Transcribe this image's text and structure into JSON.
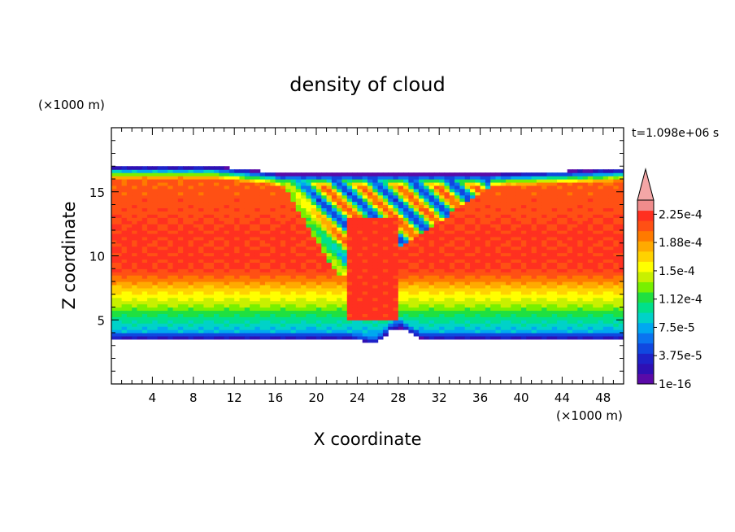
{
  "chart_data": {
    "type": "heatmap",
    "title": "density of cloud",
    "xlabel": "X coordinate",
    "ylabel": "Z coordinate",
    "x_unit": "(×1000 m)",
    "y_unit": "(×1000 m)",
    "time_label": "t=1.098e+06 s",
    "xlim": [
      0,
      50
    ],
    "ylim": [
      0,
      20
    ],
    "x_ticks": [
      4,
      8,
      12,
      16,
      20,
      24,
      28,
      32,
      36,
      40,
      44,
      48
    ],
    "x_tick_labels": [
      "4",
      "8",
      "12",
      "16",
      "20",
      "24",
      "28",
      "32",
      "36",
      "40",
      "44",
      "48"
    ],
    "y_ticks": [
      5,
      10,
      15
    ],
    "y_tick_labels": [
      "5",
      "10",
      "15"
    ],
    "grid": false,
    "colorbar": {
      "position": "right",
      "min": 1e-16,
      "max": 0.00024375,
      "extend": "max",
      "labels": [
        "1e-16",
        "3.75e-5",
        "7.5e-5",
        "1.12e-4",
        "1.5e-4",
        "1.88e-4",
        "2.25e-4"
      ],
      "label_values": [
        1e-16,
        3.75e-05,
        7.5e-05,
        0.0001125,
        0.00015,
        0.0001875,
        0.000225
      ],
      "colors": [
        "#5a0aa8",
        "#2e10b4",
        "#1e22c8",
        "#1048e0",
        "#0a74f0",
        "#00a8f0",
        "#00d2c8",
        "#00e08a",
        "#20e040",
        "#78f000",
        "#c8f000",
        "#ffff00",
        "#ffd200",
        "#ffaa00",
        "#ff7a00",
        "#ff5014",
        "#ff3020",
        "#f08c8c"
      ],
      "over_color": "#f4a6a6"
    },
    "structure": {
      "cloud_base": 3.5,
      "cloud_top_left": 17.0,
      "cloud_top_right": 16.8,
      "valley_center_x": 25.5,
      "valley_bottom_z": 3.2,
      "anvil_top": 16.4
    }
  }
}
